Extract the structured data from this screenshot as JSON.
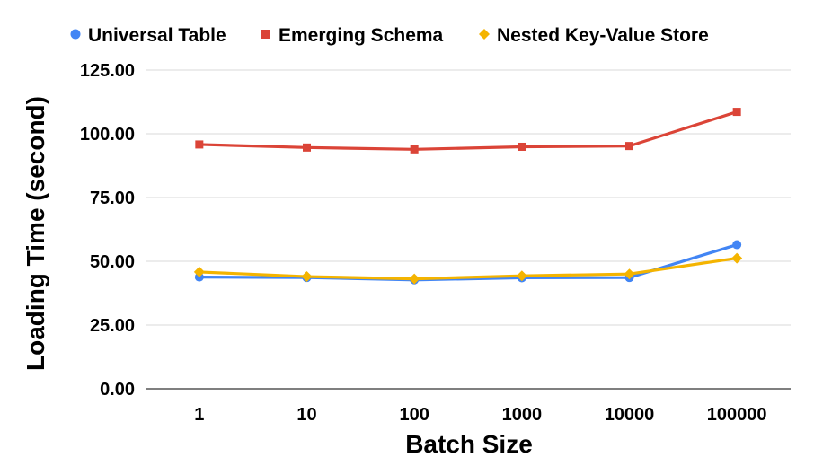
{
  "chart_data": {
    "type": "line",
    "title": "",
    "xlabel": "Batch Size",
    "ylabel": "Loading Time (second)",
    "categories": [
      "1",
      "10",
      "100",
      "1000",
      "10000",
      "100000"
    ],
    "ylim": [
      0,
      125
    ],
    "yticks": [
      "0.00",
      "25.00",
      "50.00",
      "75.00",
      "100.00",
      "125.00"
    ],
    "grid": true,
    "legend_position": "top",
    "series": [
      {
        "name": "Universal Table",
        "color": "#4285F4",
        "marker": "circle",
        "values": [
          43.8,
          43.6,
          42.7,
          43.5,
          43.6,
          56.5
        ]
      },
      {
        "name": "Emerging Schema",
        "color": "#DB4437",
        "marker": "square",
        "values": [
          95.8,
          94.6,
          93.9,
          94.9,
          95.2,
          108.6
        ]
      },
      {
        "name": "Nested Key-Value Store",
        "color": "#F4B400",
        "marker": "diamond",
        "values": [
          45.8,
          44.0,
          43.1,
          44.3,
          45.0,
          51.2
        ]
      }
    ]
  }
}
